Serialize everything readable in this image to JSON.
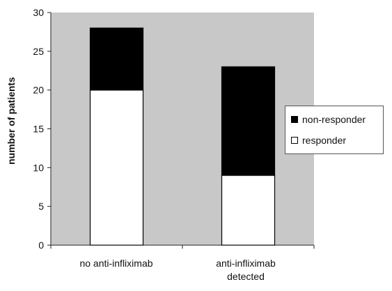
{
  "chart_data": {
    "type": "bar",
    "stacked": true,
    "categories": [
      [
        "no anti-infliximab"
      ],
      [
        "anti-infliximab",
        "detected"
      ]
    ],
    "series": [
      {
        "name": "responder",
        "values": [
          20,
          9
        ],
        "color": "#ffffff"
      },
      {
        "name": "non-responder",
        "values": [
          8,
          14
        ],
        "color": "#000000"
      }
    ],
    "ylabel": "number of patients",
    "xlabel": "",
    "ylim": [
      0,
      30
    ],
    "yticks": [
      0,
      5,
      10,
      15,
      20,
      25,
      30
    ],
    "legend_position": "right",
    "plot_background": "#c8c8c8",
    "grid": false
  },
  "legend": {
    "items": [
      {
        "label": "non-responder",
        "color": "#000000"
      },
      {
        "label": "responder",
        "color": "#ffffff"
      }
    ]
  }
}
